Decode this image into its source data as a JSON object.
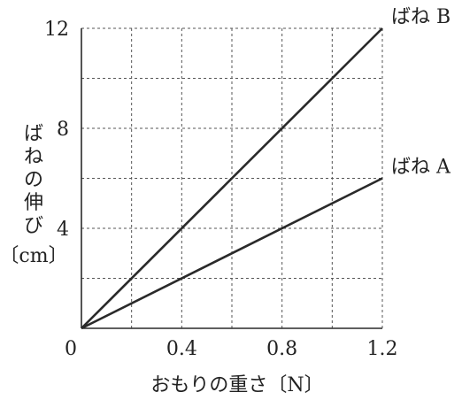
{
  "chart_data": {
    "type": "line",
    "xlabel": "おもりの重さ〔N〕",
    "ylabel_lines": [
      "ば",
      "ね",
      "の",
      "伸",
      "び",
      "〔cm〕"
    ],
    "xlim": [
      0,
      1.2
    ],
    "ylim": [
      0,
      12
    ],
    "x_grid_step": 0.2,
    "y_grid_step": 2,
    "x_ticks": [
      0.4,
      0.8,
      1.2
    ],
    "x_tick_labels": [
      "0.4",
      "0.8",
      "1.2"
    ],
    "y_ticks": [
      4,
      8,
      12
    ],
    "y_tick_labels": [
      "4",
      "8",
      "12"
    ],
    "origin_label": "0",
    "grid": true,
    "series": [
      {
        "name": "ばね B",
        "x": [
          0,
          1.2
        ],
        "y": [
          0,
          12
        ]
      },
      {
        "name": "ばね A",
        "x": [
          0,
          1.2
        ],
        "y": [
          0,
          6
        ]
      }
    ],
    "colors": {
      "line": "#2a2a2a",
      "grid": "#555555",
      "text": "#222222"
    }
  }
}
